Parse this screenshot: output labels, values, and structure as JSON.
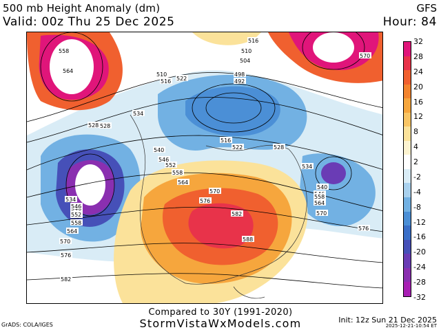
{
  "header": {
    "title": "500 mb Height Anomaly (dm)",
    "valid": "Valid: 00z Thu 25 Dec 2025",
    "model": "GFS",
    "hour": "Hour: 84"
  },
  "colorbar": {
    "labels": [
      "32",
      "28",
      "24",
      "20",
      "16",
      "12",
      "8",
      "4",
      "2",
      "-2",
      "-4",
      "-8",
      "-12",
      "-16",
      "-20",
      "-24",
      "-28",
      "-32"
    ],
    "colors": [
      "#e0157a",
      "#e8334a",
      "#f0602f",
      "#f3842e",
      "#f6a63d",
      "#f9c564",
      "#fbe29a",
      "#fcf3d0",
      "#ffffff",
      "#d9ecf6",
      "#a9d1ee",
      "#72b1e3",
      "#4b8fd6",
      "#3a6fc8",
      "#4650b8",
      "#6a3cb5",
      "#8a2fb0",
      "#a81fb4"
    ]
  },
  "map": {
    "contour_labels": [
      "558",
      "564",
      "534",
      "528",
      "546",
      "552",
      "534",
      "546",
      "552",
      "558",
      "564",
      "570",
      "576",
      "582",
      "510",
      "516",
      "522",
      "498",
      "492",
      "504",
      "510",
      "516",
      "522",
      "528",
      "540",
      "546",
      "552",
      "558",
      "564",
      "570",
      "576",
      "582",
      "588",
      "516",
      "534",
      "540",
      "546",
      "552",
      "558",
      "564",
      "570",
      "576",
      "570",
      "582",
      "528"
    ],
    "annotation_text": "Compared to 30Y (1991-2020)"
  },
  "footer": {
    "compare": "Compared to 30Y (1991-2020)",
    "site": "StormVistaWxModels.com",
    "credit": "GrADS: COLA/IGES",
    "init": "Init: 12z Sun 21 Dec 2025",
    "stamp": "2025-12-21-10:54 ET"
  }
}
